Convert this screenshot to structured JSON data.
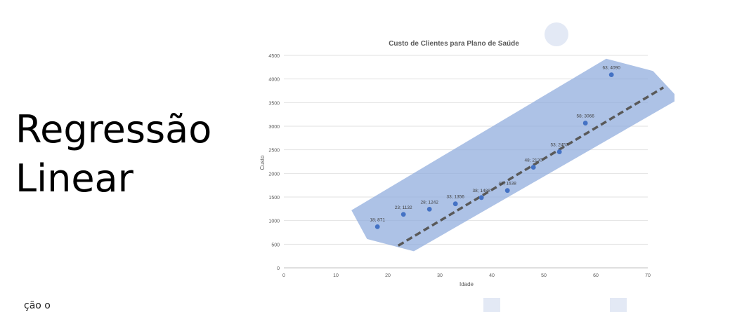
{
  "slide": {
    "title_line1": "Regressão",
    "title_line2": "Linear",
    "footer_fragment": "ção o"
  },
  "chart_data": {
    "type": "scatter",
    "title": "Custo de Clientes para Plano de Saúde",
    "xlabel": "Idade",
    "ylabel": "Custo",
    "xlim": [
      0,
      70
    ],
    "ylim": [
      0,
      4500
    ],
    "xticks": [
      0,
      10,
      20,
      30,
      40,
      50,
      60,
      70
    ],
    "yticks": [
      0,
      500,
      1000,
      1500,
      2000,
      2500,
      3000,
      3500,
      4000,
      4500
    ],
    "grid": true,
    "points": [
      {
        "x": 18,
        "y": 871,
        "label": "18; 871"
      },
      {
        "x": 23,
        "y": 1132,
        "label": "23; 1132"
      },
      {
        "x": 28,
        "y": 1242,
        "label": "28; 1242"
      },
      {
        "x": 33,
        "y": 1356,
        "label": "33; 1356"
      },
      {
        "x": 38,
        "y": 1488,
        "label": "38; 1488"
      },
      {
        "x": 43,
        "y": 1638,
        "label": "43; 1638"
      },
      {
        "x": 48,
        "y": 2130,
        "label": "48; 2130"
      },
      {
        "x": 53,
        "y": 2457,
        "label": "53; 2457"
      },
      {
        "x": 58,
        "y": 3066,
        "label": "58; 3066"
      },
      {
        "x": 63,
        "y": 4090,
        "label": "63; 4090"
      }
    ],
    "trendline": {
      "style": "dashed",
      "color": "#595959",
      "x": [
        22,
        73
      ],
      "y": [
        470,
        3820
      ]
    },
    "band": {
      "color": "#8eaadc",
      "polygon": [
        [
          13,
          1220
        ],
        [
          16,
          610
        ],
        [
          25,
          350
        ],
        [
          76,
          3580
        ],
        [
          71,
          4170
        ],
        [
          62,
          4430
        ]
      ]
    },
    "point_color": "#4472c4"
  }
}
